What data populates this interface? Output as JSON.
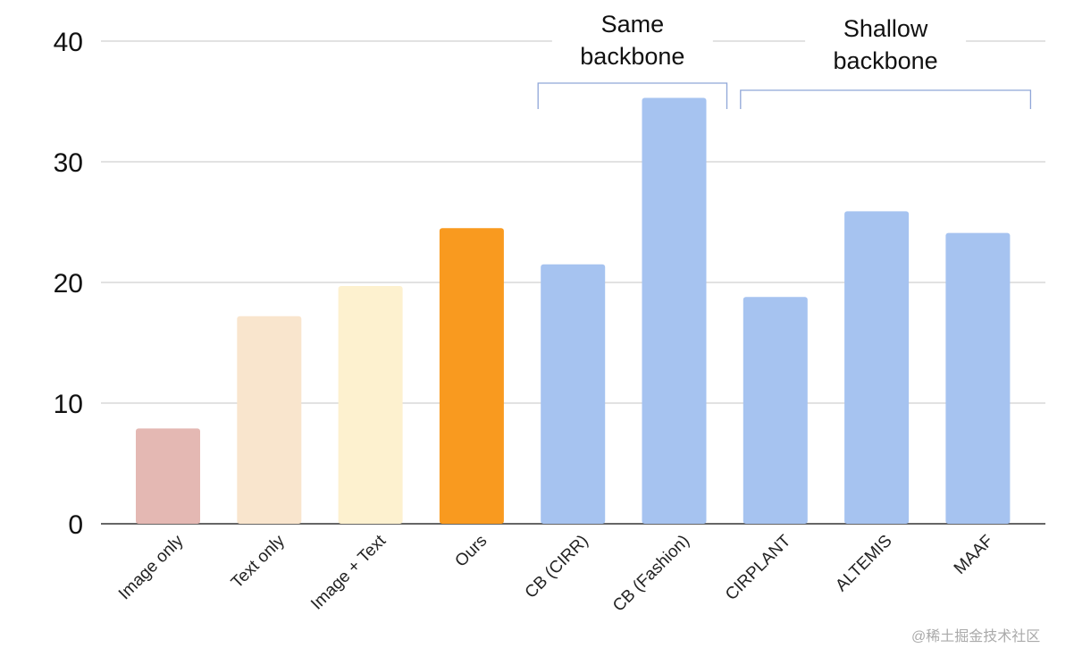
{
  "chart_data": {
    "type": "bar",
    "categories": [
      "Image only",
      "Text only",
      "Image + Text",
      "Ours",
      "CB (CIRR)",
      "CB (Fashion)",
      "CIRPLANT",
      "ALTEMIS",
      "MAAF"
    ],
    "values": [
      7.9,
      17.2,
      19.7,
      24.5,
      21.5,
      35.3,
      18.8,
      25.9,
      24.1
    ],
    "colors": [
      "#e4b8b3",
      "#f9e5cd",
      "#fdf1cf",
      "#f99a1f",
      "#a6c3f0",
      "#a6c3f0",
      "#a6c3f0",
      "#a6c3f0",
      "#a6c3f0"
    ],
    "title": "",
    "xlabel": "",
    "ylabel": "",
    "ylim": [
      0,
      40
    ],
    "yticks": [
      "0",
      "10",
      "20",
      "30",
      "40"
    ],
    "grid": true,
    "annotations": [
      {
        "lines": [
          "Same",
          "backbone"
        ],
        "covers": [
          "CB (CIRR)",
          "CB (Fashion)"
        ]
      },
      {
        "lines": [
          "Shallow",
          "backbone"
        ],
        "covers": [
          "CIRPLANT",
          "ALTEMIS",
          "MAAF"
        ]
      }
    ],
    "bracket_color": "#8fa6d8"
  },
  "watermark": "@稀土掘金技术社区"
}
